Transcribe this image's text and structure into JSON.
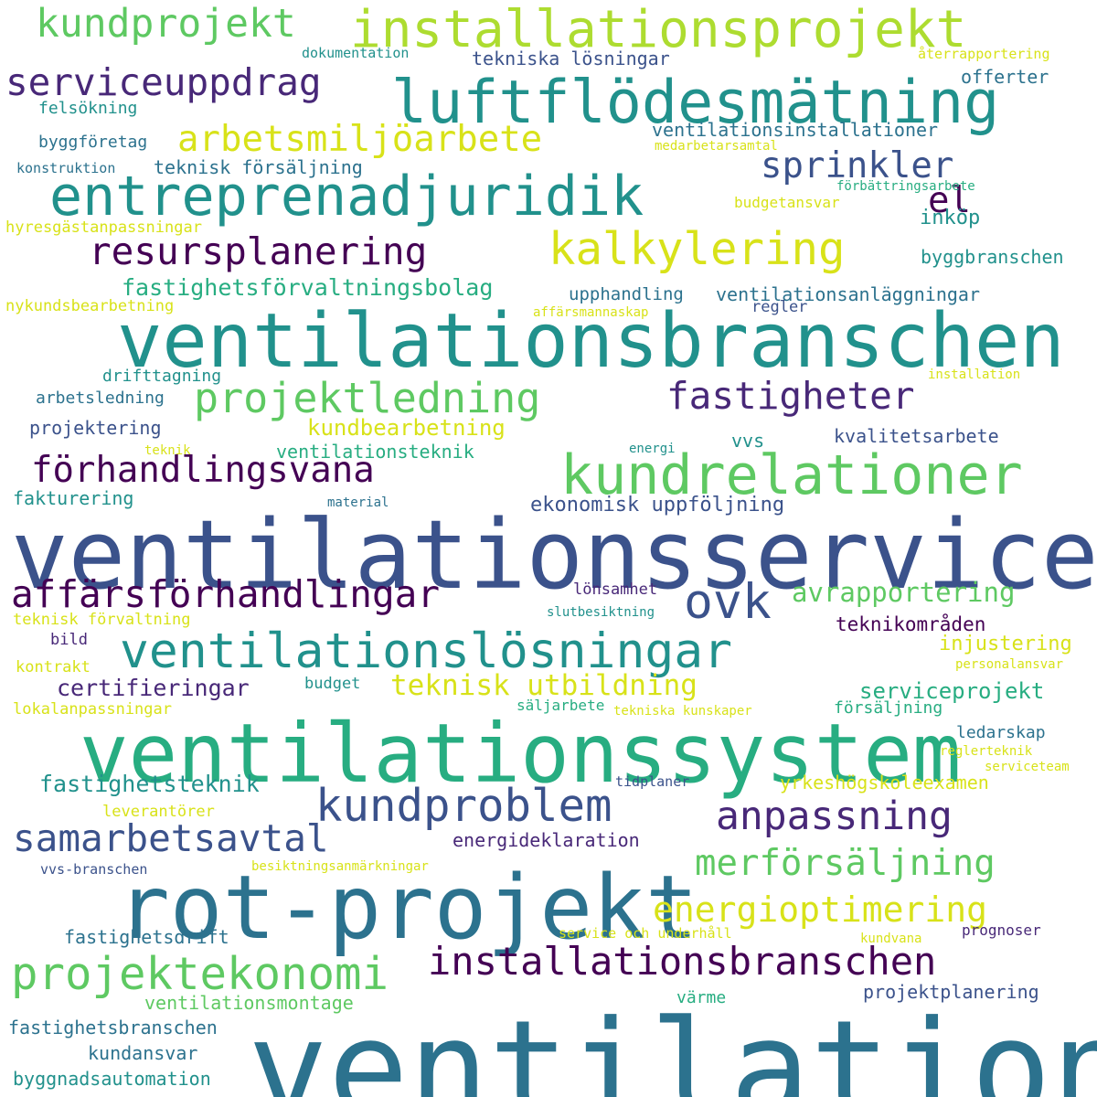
{
  "palette": {
    "c1": "#440154",
    "c2": "#3b528b",
    "c3": "#2c728e",
    "c4": "#21918c",
    "c5": "#27ad81",
    "c6": "#5ec962",
    "c7": "#addc30",
    "c8": "#d8e219",
    "c9": "#482878"
  },
  "words": [
    {
      "text": "ventilation",
      "color": "#2c728e"
    },
    {
      "text": "ventilationsservice",
      "color": "#3b528b"
    },
    {
      "text": "ventilationssystem",
      "color": "#27ad81"
    },
    {
      "text": "ventilationsbranschen",
      "color": "#21918c"
    },
    {
      "text": "rot-projekt",
      "color": "#2c728e"
    },
    {
      "text": "luftflödesmätning",
      "color": "#21918c"
    },
    {
      "text": "entreprenadjuridik",
      "color": "#21918c"
    },
    {
      "text": "installationsprojekt",
      "color": "#addc30"
    },
    {
      "text": "kundrelationer",
      "color": "#5ec962"
    },
    {
      "text": "ventilationslösningar",
      "color": "#21918c"
    },
    {
      "text": "installationsbranschen",
      "color": "#440154"
    },
    {
      "text": "kalkylering",
      "color": "#d8e219"
    },
    {
      "text": "projektekonomi",
      "color": "#5ec962"
    },
    {
      "text": "kundproblem",
      "color": "#3b528b"
    },
    {
      "text": "affärsförhandlingar",
      "color": "#440154"
    },
    {
      "text": "projektledning",
      "color": "#5ec962"
    },
    {
      "text": "serviceuppdrag",
      "color": "#482878"
    },
    {
      "text": "kundprojekt",
      "color": "#5ec962"
    },
    {
      "text": "resursplanering",
      "color": "#440154"
    },
    {
      "text": "arbetsmiljöarbete",
      "color": "#d8e219"
    },
    {
      "text": "fastigheter",
      "color": "#482878"
    },
    {
      "text": "förhandlingsvana",
      "color": "#440154"
    },
    {
      "text": "samarbetsavtal",
      "color": "#3b528b"
    },
    {
      "text": "anpassning",
      "color": "#482878"
    },
    {
      "text": "merförsäljning",
      "color": "#5ec962"
    },
    {
      "text": "energioptimering",
      "color": "#d8e219"
    },
    {
      "text": "sprinkler",
      "color": "#3b528b"
    },
    {
      "text": "ovk",
      "color": "#3b528b"
    },
    {
      "text": "el",
      "color": "#440154"
    },
    {
      "text": "teknisk utbildning",
      "color": "#d8e219"
    },
    {
      "text": "fastighetsförvaltningsbolag",
      "color": "#27ad81"
    },
    {
      "text": "avrapportering",
      "color": "#5ec962"
    },
    {
      "text": "kundbearbetning",
      "color": "#d8e219"
    },
    {
      "text": "certifieringar",
      "color": "#482878"
    },
    {
      "text": "serviceprojekt",
      "color": "#27ad81"
    },
    {
      "text": "fastighetsteknik",
      "color": "#21918c"
    },
    {
      "text": "yrkeshögskoleexamen",
      "color": "#d8e219"
    },
    {
      "text": "ekonomisk uppföljning",
      "color": "#3b528b"
    },
    {
      "text": "injustering",
      "color": "#d8e219"
    },
    {
      "text": "teknikområden",
      "color": "#440154"
    },
    {
      "text": "ventilationsanläggningar",
      "color": "#2c728e"
    },
    {
      "text": "ventilationsinstallationer",
      "color": "#2c728e"
    },
    {
      "text": "teknisk försäljning",
      "color": "#2c728e"
    },
    {
      "text": "tekniska lösningar",
      "color": "#3b528b"
    },
    {
      "text": "inköp",
      "color": "#21918c"
    },
    {
      "text": "byggbranschen",
      "color": "#21918c"
    },
    {
      "text": "kvalitetsarbete",
      "color": "#3b528b"
    },
    {
      "text": "ventilationsteknik",
      "color": "#27ad81"
    },
    {
      "text": "projektering",
      "color": "#3b528b"
    },
    {
      "text": "fakturering",
      "color": "#21918c"
    },
    {
      "text": "vvs",
      "color": "#21918c"
    },
    {
      "text": "energideklaration",
      "color": "#482878"
    },
    {
      "text": "fastighetsdrift",
      "color": "#2c728e"
    },
    {
      "text": "ventilationsmontage",
      "color": "#5ec962"
    },
    {
      "text": "projektplanering",
      "color": "#3b528b"
    },
    {
      "text": "fastighetsbranschen",
      "color": "#2c728e"
    },
    {
      "text": "kundansvar",
      "color": "#2c728e"
    },
    {
      "text": "byggnadsautomation",
      "color": "#21918c"
    },
    {
      "text": "offerter",
      "color": "#2c728e"
    },
    {
      "text": "upphandling",
      "color": "#2c728e"
    },
    {
      "text": "lönsamhet",
      "color": "#482878"
    },
    {
      "text": "budget",
      "color": "#21918c"
    },
    {
      "text": "ledarskap",
      "color": "#2c728e"
    },
    {
      "text": "värme",
      "color": "#27ad81"
    },
    {
      "text": "försäljning",
      "color": "#27ad81"
    },
    {
      "text": "felsökning",
      "color": "#21918c"
    },
    {
      "text": "byggföretag",
      "color": "#2c728e"
    },
    {
      "text": "drifttagning",
      "color": "#21918c"
    },
    {
      "text": "arbetsledning",
      "color": "#2c728e"
    },
    {
      "text": "regler",
      "color": "#3b528b"
    },
    {
      "text": "budgetansvar",
      "color": "#d8e219"
    },
    {
      "text": "prognoser",
      "color": "#482878"
    },
    {
      "text": "kontrakt",
      "color": "#d8e219"
    },
    {
      "text": "teknisk förvaltning",
      "color": "#d8e219"
    },
    {
      "text": "bild",
      "color": "#482878"
    },
    {
      "text": "lokalanpassningar",
      "color": "#d8e219"
    },
    {
      "text": "leverantörer",
      "color": "#d8e219"
    },
    {
      "text": "vvs-branschen",
      "color": "#3b528b"
    },
    {
      "text": "säljarbete",
      "color": "#27ad81"
    },
    {
      "text": "tidplaner",
      "color": "#3b528b"
    },
    {
      "text": "service och underhåll",
      "color": "#d8e219"
    },
    {
      "text": "kundvana",
      "color": "#d8e219"
    },
    {
      "text": "hyresgästanpassningar",
      "color": "#d8e219"
    },
    {
      "text": "nykundsbearbetning",
      "color": "#d8e219"
    },
    {
      "text": "konstruktion",
      "color": "#2c728e"
    },
    {
      "text": "dokumentation",
      "color": "#21918c"
    },
    {
      "text": "återrapportering",
      "color": "#d8e219"
    },
    {
      "text": "medarbetarsamtal",
      "color": "#d8e219"
    },
    {
      "text": "förbättringsarbete",
      "color": "#27ad81"
    },
    {
      "text": "affärsmannaskap",
      "color": "#d8e219"
    },
    {
      "text": "installation",
      "color": "#d8e219"
    },
    {
      "text": "teknik",
      "color": "#d8e219"
    },
    {
      "text": "energi",
      "color": "#21918c"
    },
    {
      "text": "material",
      "color": "#2c728e"
    },
    {
      "text": "slutbesiktning",
      "color": "#21918c"
    },
    {
      "text": "personalansvar",
      "color": "#d8e219"
    },
    {
      "text": "tekniska kunskaper",
      "color": "#d8e219"
    },
    {
      "text": "reglerteknik",
      "color": "#d8e219"
    },
    {
      "text": "serviceteam",
      "color": "#d8e219"
    },
    {
      "text": "besiktningsanmärkningar",
      "color": "#d8e219"
    }
  ]
}
